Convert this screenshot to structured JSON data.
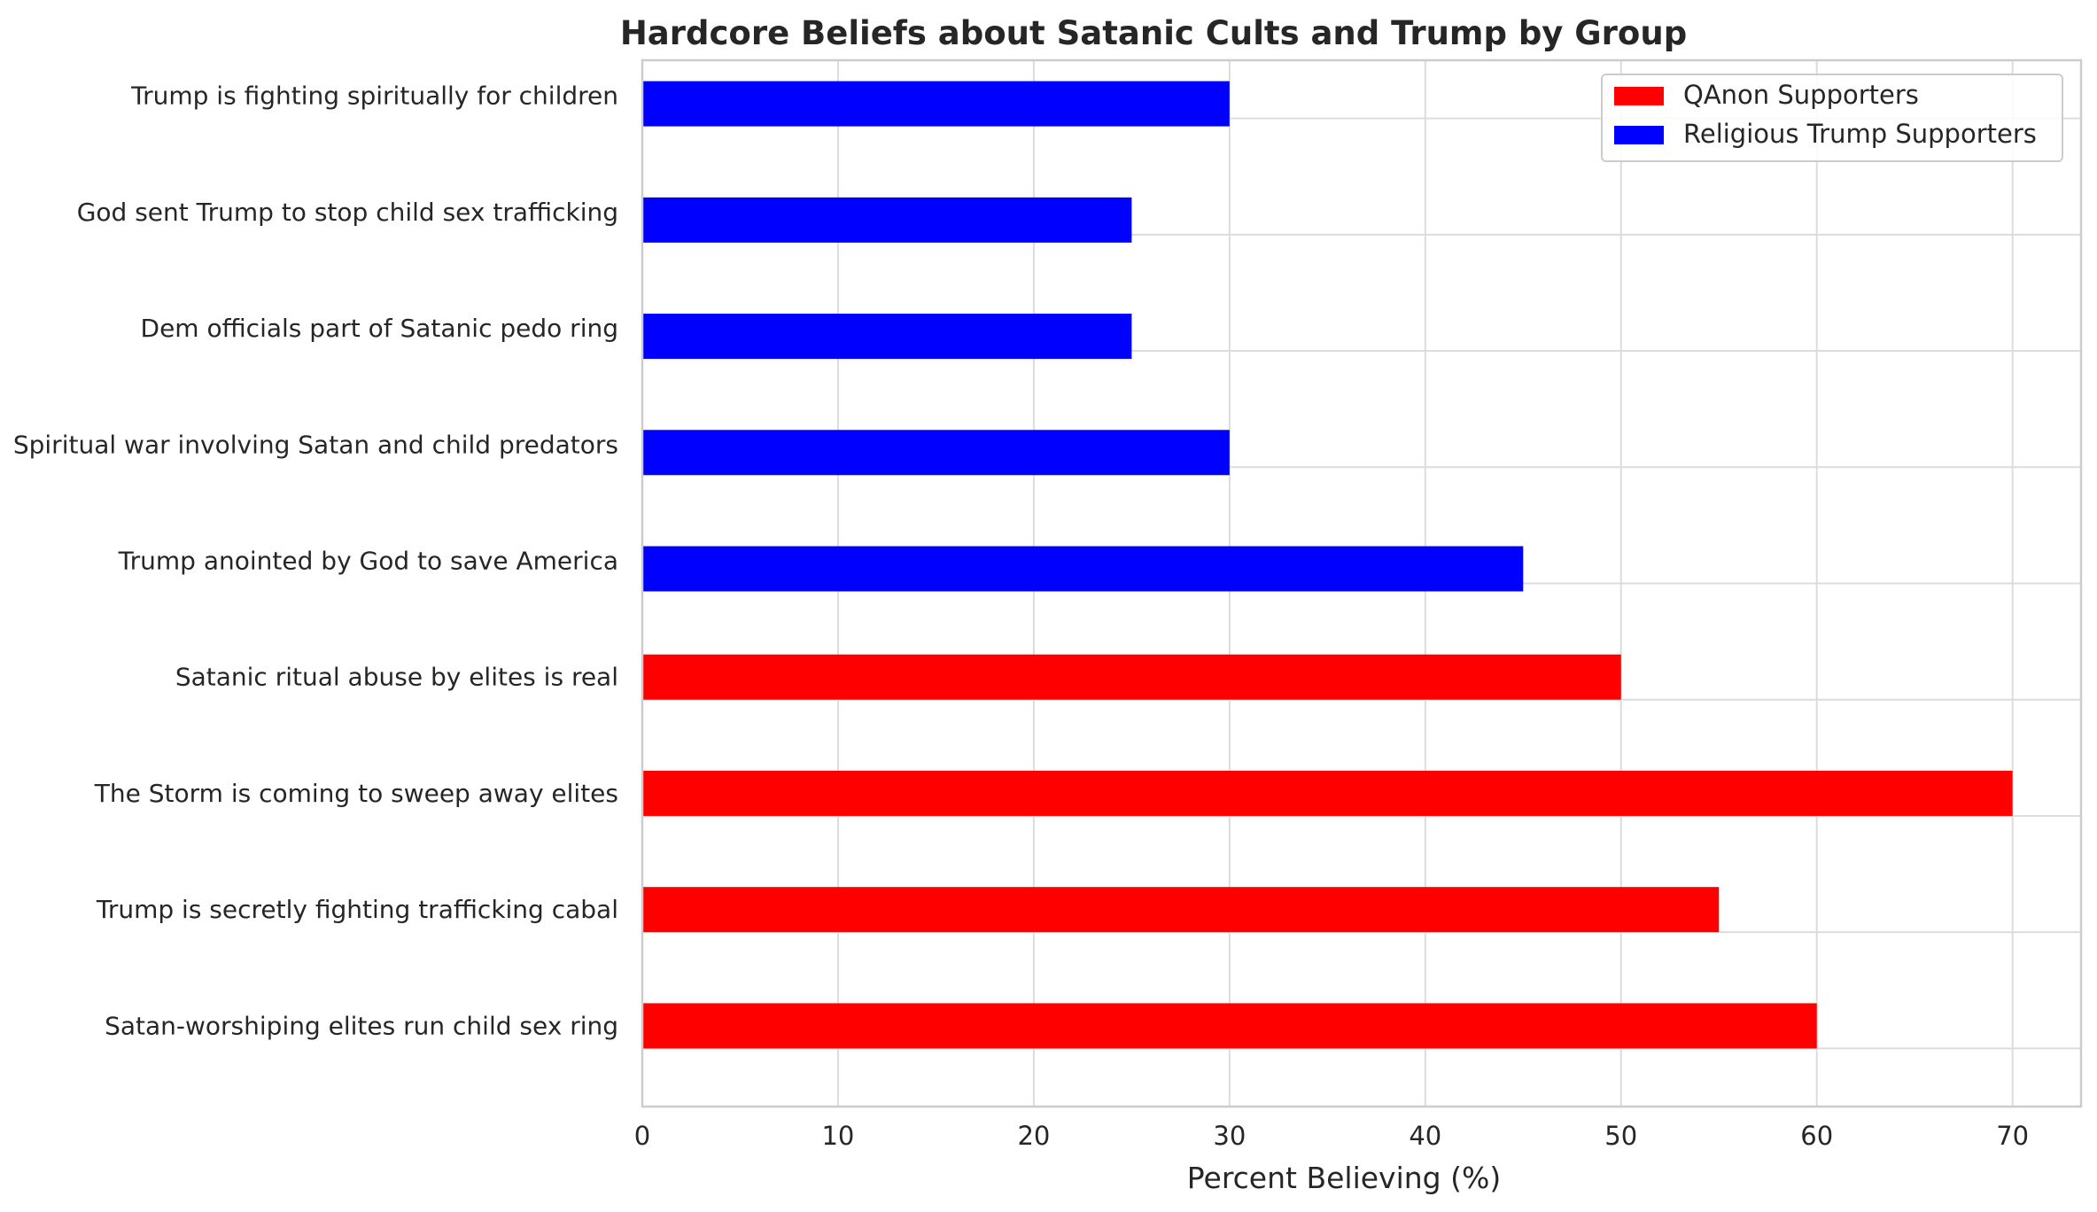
{
  "chart_data": {
    "type": "bar",
    "orientation": "horizontal",
    "title": "Hardcore Beliefs about Satanic Cults and Trump by Group",
    "xlabel": "Percent Believing (%)",
    "ylabel": "",
    "xlim": [
      0,
      73.5
    ],
    "xticks": [
      0,
      10,
      20,
      30,
      40,
      50,
      60,
      70
    ],
    "grid": true,
    "legend_position": "top-right",
    "categories": [
      "Satan-worshiping elites run child sex ring",
      "Trump is secretly fighting trafficking cabal",
      "The Storm is coming to sweep away elites",
      "Satanic ritual abuse by elites is real",
      "Trump anointed by God to save America",
      "Spiritual war involving Satan and child predators",
      "Dem officials part of Satanic pedo ring",
      "God sent Trump to stop child sex trafficking",
      "Trump is fighting spiritually for children"
    ],
    "series": [
      {
        "name": "QAnon Supporters",
        "color": "#ff0000",
        "values": [
          60,
          55,
          70,
          50,
          null,
          null,
          null,
          null,
          null
        ]
      },
      {
        "name": "Religious Trump Supporters",
        "color": "#0000ff",
        "values": [
          null,
          null,
          null,
          null,
          45,
          30,
          25,
          25,
          30
        ]
      }
    ]
  }
}
